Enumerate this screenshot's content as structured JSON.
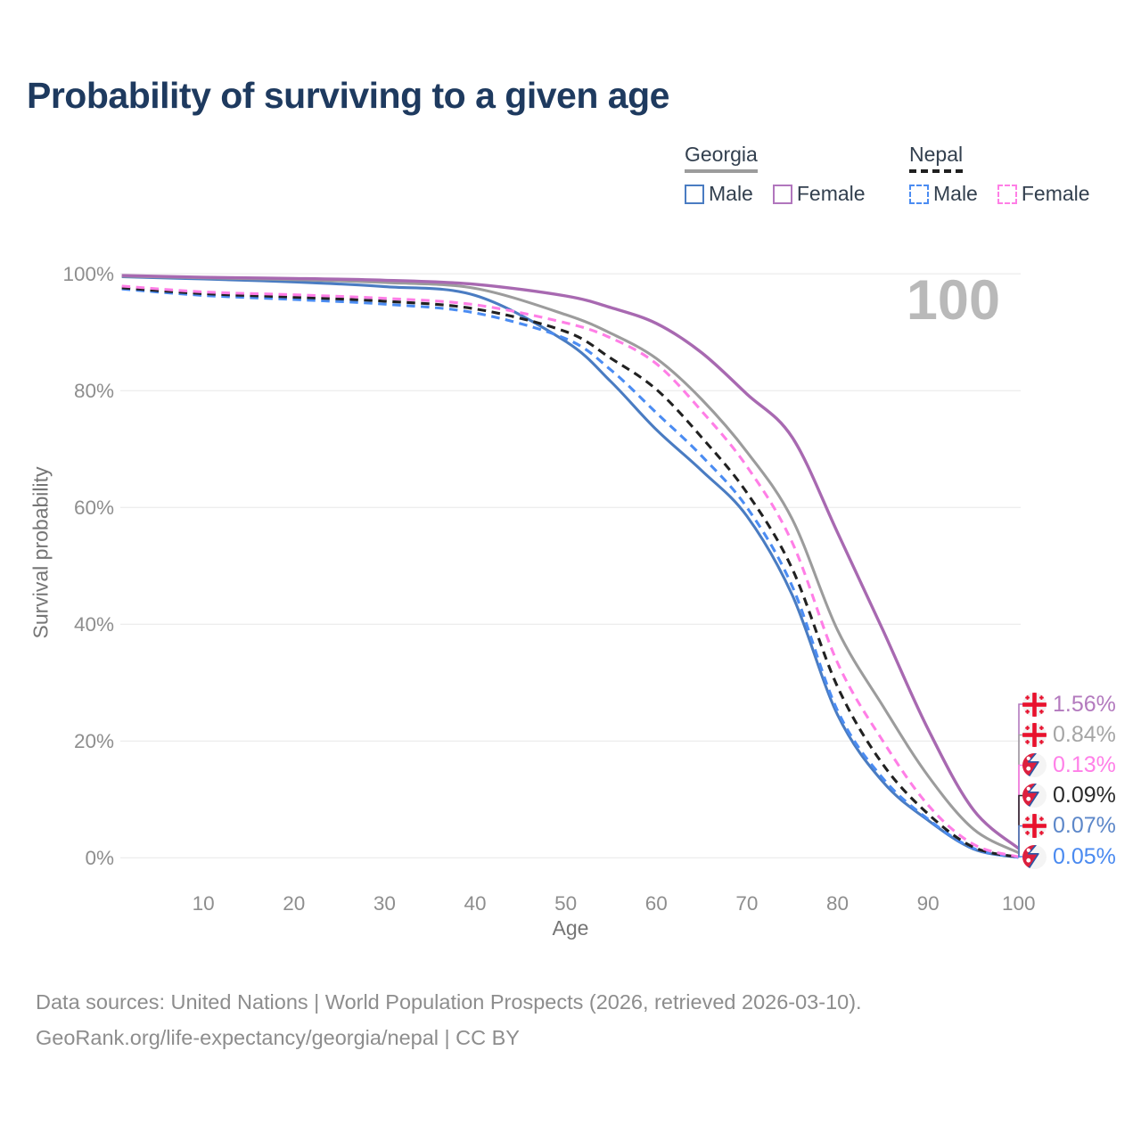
{
  "header": {
    "title": "Probability of surviving to a given age"
  },
  "legend": {
    "groups": [
      {
        "label": "Georgia",
        "line_style": "solid",
        "line_color": "#9c9c9c",
        "items": [
          {
            "label": "Male",
            "color": "#4a7cc2",
            "box_style": "solid"
          },
          {
            "label": "Female",
            "color": "#b176bd",
            "box_style": "solid"
          }
        ]
      },
      {
        "label": "Nepal",
        "line_style": "dashed",
        "line_color": "#1f1f1f",
        "items": [
          {
            "label": "Male",
            "color": "#4b8cf2",
            "box_style": "dashed"
          },
          {
            "label": "Female",
            "color": "#ff7ee6",
            "box_style": "dashed"
          }
        ]
      }
    ]
  },
  "chart_data": {
    "type": "line",
    "title": "Probability of surviving to a given age",
    "xlabel": "Age",
    "ylabel": "Survival probability",
    "xlim": [
      1,
      100
    ],
    "ylim": [
      0,
      100
    ],
    "grid": "horizontal",
    "age_indicator": "100",
    "x_ticks": [
      10,
      20,
      30,
      40,
      50,
      60,
      70,
      80,
      90,
      100
    ],
    "y_ticks": [
      {
        "value": 0,
        "label": "0%"
      },
      {
        "value": 20,
        "label": "20%"
      },
      {
        "value": 40,
        "label": "40%"
      },
      {
        "value": 60,
        "label": "60%"
      },
      {
        "value": 80,
        "label": "80%"
      },
      {
        "value": 100,
        "label": "100%"
      }
    ],
    "x": [
      1,
      10,
      20,
      30,
      40,
      50,
      55,
      60,
      65,
      70,
      75,
      80,
      85,
      90,
      95,
      100
    ],
    "series": [
      {
        "name": "Georgia Male",
        "country": "Georgia",
        "sex": "Male",
        "style": "solid",
        "color": "#4a7cc2",
        "values": [
          99.5,
          99.1,
          98.6,
          97.8,
          96.3,
          88.4,
          81.5,
          73.3,
          66.3,
          58.5,
          45.0,
          24.5,
          13.0,
          6.4,
          1.5,
          0.07
        ]
      },
      {
        "name": "Georgia Total",
        "country": "Georgia",
        "sex": "Total",
        "style": "solid",
        "color": "#9c9c9c",
        "values": [
          99.6,
          99.3,
          99.0,
          98.5,
          97.5,
          93.0,
          89.8,
          85.5,
          78.5,
          69.5,
          58.0,
          39.0,
          26.0,
          14.0,
          4.9,
          0.84
        ]
      },
      {
        "name": "Georgia Female",
        "country": "Georgia",
        "sex": "Female",
        "style": "solid",
        "color": "#a869b1",
        "values": [
          99.7,
          99.4,
          99.2,
          98.9,
          98.2,
          96.2,
          94.2,
          91.5,
          86.5,
          79.4,
          72.0,
          55.7,
          39.0,
          22.0,
          8.2,
          1.56
        ]
      },
      {
        "name": "Nepal Male",
        "country": "Nepal",
        "sex": "Male",
        "style": "dashed",
        "color": "#4b8cf2",
        "values": [
          97.4,
          96.3,
          95.6,
          94.8,
          93.3,
          88.9,
          83.5,
          76.2,
          68.8,
          60.0,
          46.5,
          25.2,
          13.6,
          6.6,
          1.6,
          0.05
        ]
      },
      {
        "name": "Nepal Total",
        "country": "Nepal",
        "sex": "Total",
        "style": "dashed",
        "color": "#212121",
        "values": [
          97.6,
          96.6,
          96.0,
          95.3,
          94.0,
          90.1,
          85.5,
          80.2,
          72.0,
          62.5,
          49.5,
          29.3,
          16.0,
          7.5,
          1.8,
          0.09
        ]
      },
      {
        "name": "Nepal Female",
        "country": "Nepal",
        "sex": "Female",
        "style": "dashed",
        "color": "#ff7ee6",
        "values": [
          97.9,
          96.9,
          96.4,
          95.8,
          94.7,
          91.6,
          89.0,
          84.6,
          76.5,
          67.0,
          54.0,
          33.4,
          20.0,
          9.0,
          2.3,
          0.13
        ]
      }
    ],
    "end_labels": [
      {
        "series": "Georgia Female",
        "flag": "georgia",
        "value_label": "1.56%",
        "value_pct": 1.56,
        "color": "#b37abe"
      },
      {
        "series": "Georgia Total",
        "flag": "georgia",
        "value_label": "0.84%",
        "value_pct": 0.84,
        "color": "#a5a5a5"
      },
      {
        "series": "Nepal Female",
        "flag": "nepal",
        "value_label": "0.13%",
        "value_pct": 0.13,
        "color": "#ff80e8"
      },
      {
        "series": "Nepal Total",
        "flag": "nepal",
        "value_label": "0.09%",
        "value_pct": 0.09,
        "color": "#2b2b2b"
      },
      {
        "series": "Georgia Male",
        "flag": "georgia",
        "value_label": "0.07%",
        "value_pct": 0.07,
        "color": "#5c87c9"
      },
      {
        "series": "Nepal Male",
        "flag": "nepal",
        "value_label": "0.05%",
        "value_pct": 0.05,
        "color": "#4a8af0"
      }
    ]
  },
  "footer": {
    "line1": "Data sources: United Nations | World Population Prospects (2026, retrieved 2026-03-10).",
    "line2": "GeoRank.org/life-expectancy/georgia/nepal | CC BY"
  }
}
